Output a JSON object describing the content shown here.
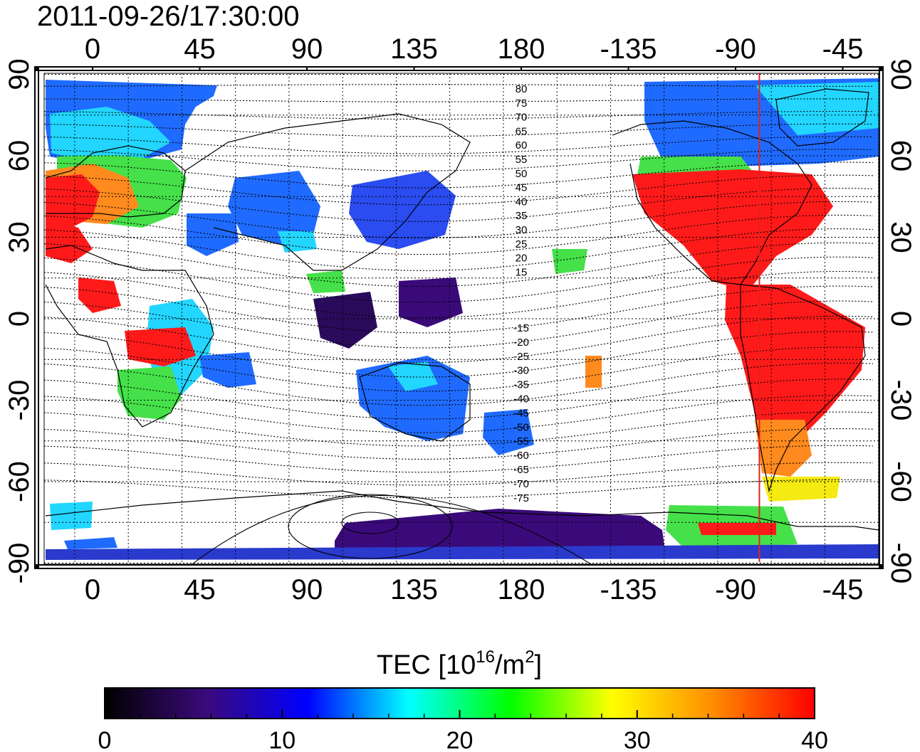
{
  "timestamp": "2011-09-26/17:30:00",
  "map": {
    "lon_ticks": [
      "0",
      "45",
      "90",
      "135",
      "180",
      "-135",
      "-90",
      "-45"
    ],
    "lat_ticks": [
      "90",
      "60",
      "30",
      "0",
      "-30",
      "-60",
      "-90"
    ],
    "meridian_marker": {
      "lon": -80,
      "color": "#e0231f"
    },
    "contour_labels_north": [
      "80",
      "75",
      "70",
      "65",
      "60",
      "55",
      "50",
      "45",
      "40",
      "35",
      "30",
      "25",
      "20",
      "15"
    ],
    "contour_labels_south": [
      "-15",
      "-20",
      "-25",
      "-30",
      "-35",
      "-40",
      "-45",
      "-50",
      "-55",
      "-60",
      "-65",
      "-70",
      "-75"
    ]
  },
  "colorbar": {
    "title_prefix": "TEC  [10",
    "title_exp": "16",
    "title_mid": "/m",
    "title_exp2": "2",
    "title_suffix": "]",
    "ticks": [
      "0",
      "10",
      "20",
      "30",
      "40"
    ],
    "range": [
      0,
      40
    ],
    "stops": [
      "#000000",
      "#3a0a7a",
      "#0000ff",
      "#00ffff",
      "#00ff00",
      "#ffff00",
      "#ff8c00",
      "#ff0000"
    ]
  },
  "colors": {
    "low": "#3a0a7a",
    "blue": "#1f3cff",
    "cyan": "#22d6ff",
    "green": "#45e04a",
    "yellow": "#f5ea12",
    "orange": "#ff8a1e",
    "red": "#ff1a1a"
  }
}
